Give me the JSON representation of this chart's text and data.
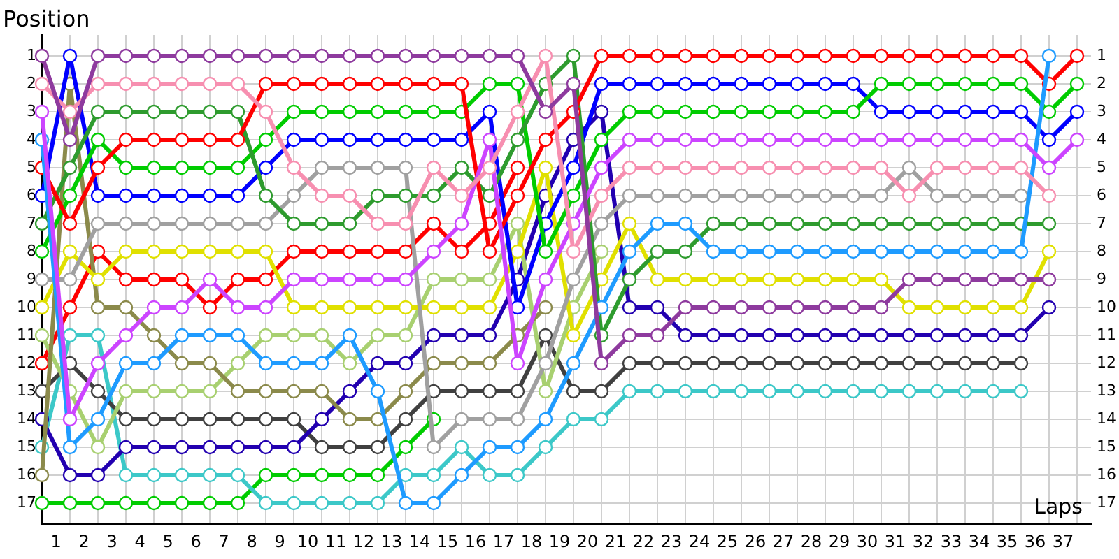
{
  "chart_data": {
    "type": "line",
    "ylabel": "Position",
    "xlabel": "Laps",
    "marker": "circle",
    "grid": true,
    "x": [
      0,
      1,
      2,
      3,
      4,
      5,
      6,
      7,
      8,
      9,
      10,
      11,
      12,
      13,
      14,
      15,
      16,
      17,
      18,
      19,
      20,
      21,
      22,
      23,
      24,
      25,
      26,
      27,
      28,
      29,
      30,
      31,
      32,
      33,
      34,
      35,
      36,
      37
    ],
    "xlim": [
      0,
      37.5
    ],
    "xticks": [
      {
        "value": 0,
        "label": null
      },
      {
        "value": 0.5,
        "label": "1"
      },
      {
        "value": 1,
        "label": null
      },
      {
        "value": 1.5,
        "label": "2"
      },
      {
        "value": 2,
        "label": null
      },
      {
        "value": 2.5,
        "label": "3"
      },
      {
        "value": 3,
        "label": null
      },
      {
        "value": 3.5,
        "label": "4"
      },
      {
        "value": 4,
        "label": null
      },
      {
        "value": 4.5,
        "label": "5"
      },
      {
        "value": 5,
        "label": null
      },
      {
        "value": 5.5,
        "label": "6"
      },
      {
        "value": 6,
        "label": null
      },
      {
        "value": 6.5,
        "label": "7"
      },
      {
        "value": 7,
        "label": null
      },
      {
        "value": 7.5,
        "label": "8"
      },
      {
        "value": 8,
        "label": null
      },
      {
        "value": 8.5,
        "label": "9"
      },
      {
        "value": 9,
        "label": null
      },
      {
        "value": 9.5,
        "label": "10"
      },
      {
        "value": 10,
        "label": null
      },
      {
        "value": 10.5,
        "label": "11"
      },
      {
        "value": 11,
        "label": null
      },
      {
        "value": 11.5,
        "label": "12"
      },
      {
        "value": 12,
        "label": null
      },
      {
        "value": 12.5,
        "label": "13"
      },
      {
        "value": 13,
        "label": null
      },
      {
        "value": 13.5,
        "label": "14"
      },
      {
        "value": 14,
        "label": null
      },
      {
        "value": 14.5,
        "label": "15"
      },
      {
        "value": 15,
        "label": null
      },
      {
        "value": 15.5,
        "label": "16"
      },
      {
        "value": 16,
        "label": null
      },
      {
        "value": 16.5,
        "label": "17"
      },
      {
        "value": 17,
        "label": null
      },
      {
        "value": 17.5,
        "label": "18"
      },
      {
        "value": 18,
        "label": null
      },
      {
        "value": 18.5,
        "label": "19"
      },
      {
        "value": 19,
        "label": null
      },
      {
        "value": 19.5,
        "label": "20"
      },
      {
        "value": 20,
        "label": null
      },
      {
        "value": 20.5,
        "label": "21"
      },
      {
        "value": 21,
        "label": null
      },
      {
        "value": 21.5,
        "label": "22"
      },
      {
        "value": 22,
        "label": null
      },
      {
        "value": 22.5,
        "label": "23"
      },
      {
        "value": 23,
        "label": null
      },
      {
        "value": 23.5,
        "label": "24"
      },
      {
        "value": 24,
        "label": null
      },
      {
        "value": 24.5,
        "label": "25"
      },
      {
        "value": 25,
        "label": null
      },
      {
        "value": 25.5,
        "label": "26"
      },
      {
        "value": 26,
        "label": null
      },
      {
        "value": 26.5,
        "label": "27"
      },
      {
        "value": 27,
        "label": null
      },
      {
        "value": 27.5,
        "label": "28"
      },
      {
        "value": 28,
        "label": null
      },
      {
        "value": 28.5,
        "label": "29"
      },
      {
        "value": 29,
        "label": null
      },
      {
        "value": 29.5,
        "label": "30"
      },
      {
        "value": 30,
        "label": null
      },
      {
        "value": 30.5,
        "label": "31"
      },
      {
        "value": 31,
        "label": null
      },
      {
        "value": 31.5,
        "label": "32"
      },
      {
        "value": 32,
        "label": null
      },
      {
        "value": 32.5,
        "label": "33"
      },
      {
        "value": 33,
        "label": null
      },
      {
        "value": 33.5,
        "label": "34"
      },
      {
        "value": 34,
        "label": null
      },
      {
        "value": 34.5,
        "label": "35"
      },
      {
        "value": 35,
        "label": null
      },
      {
        "value": 35.5,
        "label": "36"
      },
      {
        "value": 36,
        "label": null
      },
      {
        "value": 36.5,
        "label": "37"
      },
      {
        "value": 37,
        "label": null
      }
    ],
    "ylim": [
      17.75,
      0.25
    ],
    "yticks": [
      1,
      2,
      3,
      4,
      5,
      6,
      7,
      8,
      9,
      10,
      11,
      12,
      13,
      14,
      15,
      16,
      17
    ],
    "y2lim": [
      17.75,
      0.25
    ],
    "y2ticks": [
      1,
      2,
      3,
      4,
      5,
      6,
      7,
      8,
      9,
      10,
      11,
      12,
      13,
      14,
      15,
      16,
      17
    ],
    "series": [
      {
        "color": "#8e3a9e",
        "values": [
          1,
          4,
          1,
          1,
          1,
          1,
          1,
          1,
          1,
          1,
          1,
          1,
          1,
          1,
          1,
          1,
          1,
          1,
          3,
          2,
          12,
          11,
          11,
          10,
          10,
          10,
          10,
          10,
          10,
          10,
          10,
          9,
          9,
          9,
          9,
          9,
          9,
          null
        ]
      },
      {
        "color": "#f78fb0",
        "values": [
          2,
          3,
          2,
          2,
          2,
          2,
          2,
          2,
          3,
          5,
          6,
          6,
          7,
          7,
          5,
          6,
          5,
          3,
          1,
          8,
          6,
          5,
          5,
          5,
          5,
          5,
          5,
          5,
          5,
          5,
          5,
          6,
          5,
          5,
          5,
          5,
          6,
          null
        ]
      },
      {
        "color": "#cc44ff",
        "values": [
          3,
          14,
          12,
          11,
          10,
          10,
          9,
          10,
          10,
          9,
          9,
          9,
          9,
          9,
          8,
          7,
          4,
          12,
          9,
          7,
          5,
          4,
          4,
          4,
          4,
          4,
          4,
          4,
          4,
          4,
          4,
          4,
          4,
          4,
          4,
          4,
          5,
          4
        ]
      },
      {
        "color": "#1e9bff",
        "values": [
          4,
          15,
          14,
          12,
          12,
          11,
          11,
          11,
          12,
          12,
          12,
          11,
          13,
          17,
          17,
          16,
          15,
          15,
          14,
          12,
          10,
          8,
          7,
          7,
          8,
          8,
          8,
          8,
          8,
          8,
          8,
          8,
          8,
          8,
          8,
          8,
          1,
          null
        ]
      },
      {
        "color": "#ff0000",
        "values": [
          5,
          7,
          5,
          4,
          4,
          4,
          4,
          4,
          2,
          2,
          2,
          2,
          2,
          2,
          2,
          2,
          8,
          6,
          4,
          3,
          1,
          1,
          1,
          1,
          1,
          1,
          1,
          1,
          1,
          1,
          1,
          1,
          1,
          1,
          1,
          1,
          2,
          1
        ]
      },
      {
        "color": "#2e9b2e",
        "values": [
          7,
          5,
          3,
          3,
          3,
          3,
          3,
          3,
          6,
          7,
          7,
          7,
          6,
          6,
          6,
          5,
          6,
          4,
          2,
          1,
          11,
          9,
          8,
          8,
          7,
          7,
          7,
          7,
          7,
          7,
          7,
          7,
          7,
          7,
          7,
          7,
          7,
          null
        ]
      },
      {
        "color": "#00cc00",
        "values": [
          8,
          6,
          4,
          5,
          5,
          5,
          5,
          5,
          4,
          3,
          3,
          3,
          3,
          3,
          3,
          3,
          2,
          2,
          8,
          6,
          4,
          3,
          3,
          3,
          3,
          3,
          3,
          3,
          3,
          3,
          2,
          2,
          2,
          2,
          2,
          2,
          3,
          2
        ]
      },
      {
        "color": "#0000ff",
        "values": [
          6,
          1,
          6,
          6,
          6,
          6,
          6,
          6,
          5,
          4,
          4,
          4,
          4,
          4,
          4,
          4,
          3,
          10,
          7,
          5,
          2,
          2,
          2,
          2,
          2,
          2,
          2,
          2,
          2,
          2,
          3,
          3,
          3,
          3,
          3,
          3,
          4,
          3
        ]
      },
      {
        "color": "#a0a0a0",
        "values": [
          9,
          9,
          7,
          7,
          7,
          7,
          7,
          7,
          7,
          6,
          5,
          5,
          5,
          5,
          15,
          14,
          14,
          14,
          12,
          9,
          7,
          6,
          6,
          6,
          6,
          6,
          6,
          6,
          6,
          6,
          6,
          5,
          6,
          6,
          6,
          6,
          null,
          null
        ]
      },
      {
        "color": "#e0e000",
        "values": [
          10,
          8,
          9,
          8,
          8,
          8,
          8,
          8,
          8,
          10,
          10,
          10,
          10,
          10,
          10,
          10,
          10,
          8,
          5,
          11,
          9,
          7,
          9,
          9,
          9,
          9,
          9,
          9,
          9,
          9,
          9,
          10,
          10,
          10,
          10,
          10,
          8,
          null
        ]
      },
      {
        "color": "#8b8a4b",
        "values": [
          16,
          2,
          10,
          10,
          11,
          12,
          12,
          13,
          13,
          13,
          13,
          14,
          14,
          13,
          12,
          12,
          12,
          11,
          10,
          null,
          null,
          null,
          null,
          null,
          null,
          null,
          null,
          null,
          null,
          null,
          null,
          null,
          null,
          null,
          null,
          null,
          null,
          null
        ]
      },
      {
        "color": "#a8d070",
        "values": [
          11,
          13,
          15,
          13,
          13,
          13,
          13,
          12,
          11,
          11,
          11,
          12,
          11,
          11,
          9,
          9,
          9,
          7,
          13,
          10,
          8,
          null,
          null,
          null,
          null,
          null,
          null,
          null,
          null,
          null,
          null,
          null,
          null,
          null,
          null,
          null,
          null,
          null
        ]
      },
      {
        "color": "#2200b0",
        "values": [
          14,
          16,
          16,
          15,
          15,
          15,
          15,
          15,
          15,
          15,
          14,
          13,
          12,
          12,
          11,
          11,
          11,
          9,
          6,
          4,
          3,
          10,
          10,
          11,
          11,
          11,
          11,
          11,
          11,
          11,
          11,
          11,
          11,
          11,
          11,
          11,
          10,
          null
        ]
      },
      {
        "color": "#404040",
        "values": [
          13,
          12,
          13,
          14,
          14,
          14,
          14,
          14,
          14,
          14,
          15,
          15,
          15,
          14,
          13,
          13,
          13,
          13,
          11,
          13,
          13,
          12,
          12,
          12,
          12,
          12,
          12,
          12,
          12,
          12,
          12,
          12,
          12,
          12,
          12,
          12,
          null,
          null
        ]
      },
      {
        "color": "#3cc8c8",
        "values": [
          15,
          11,
          11,
          16,
          16,
          16,
          16,
          16,
          17,
          17,
          17,
          17,
          17,
          16,
          16,
          15,
          16,
          16,
          15,
          14,
          14,
          13,
          13,
          13,
          13,
          13,
          13,
          13,
          13,
          13,
          13,
          13,
          13,
          13,
          13,
          13,
          null,
          null
        ]
      },
      {
        "color": "#00cc00",
        "values": [
          17,
          17,
          17,
          17,
          17,
          17,
          17,
          17,
          16,
          16,
          16,
          16,
          16,
          15,
          14,
          null,
          null,
          null,
          null,
          null,
          null,
          null,
          null,
          null,
          null,
          null,
          null,
          null,
          null,
          null,
          null,
          null,
          null,
          null,
          null,
          null,
          null,
          null
        ]
      },
      {
        "color": "#ff0000",
        "values": [
          12,
          10,
          8,
          9,
          9,
          9,
          10,
          9,
          9,
          8,
          8,
          8,
          8,
          8,
          7,
          8,
          7,
          5,
          null,
          null,
          null,
          null,
          null,
          null,
          null,
          null,
          null,
          null,
          null,
          null,
          null,
          null,
          null,
          null,
          null,
          null,
          null,
          null
        ]
      }
    ]
  }
}
